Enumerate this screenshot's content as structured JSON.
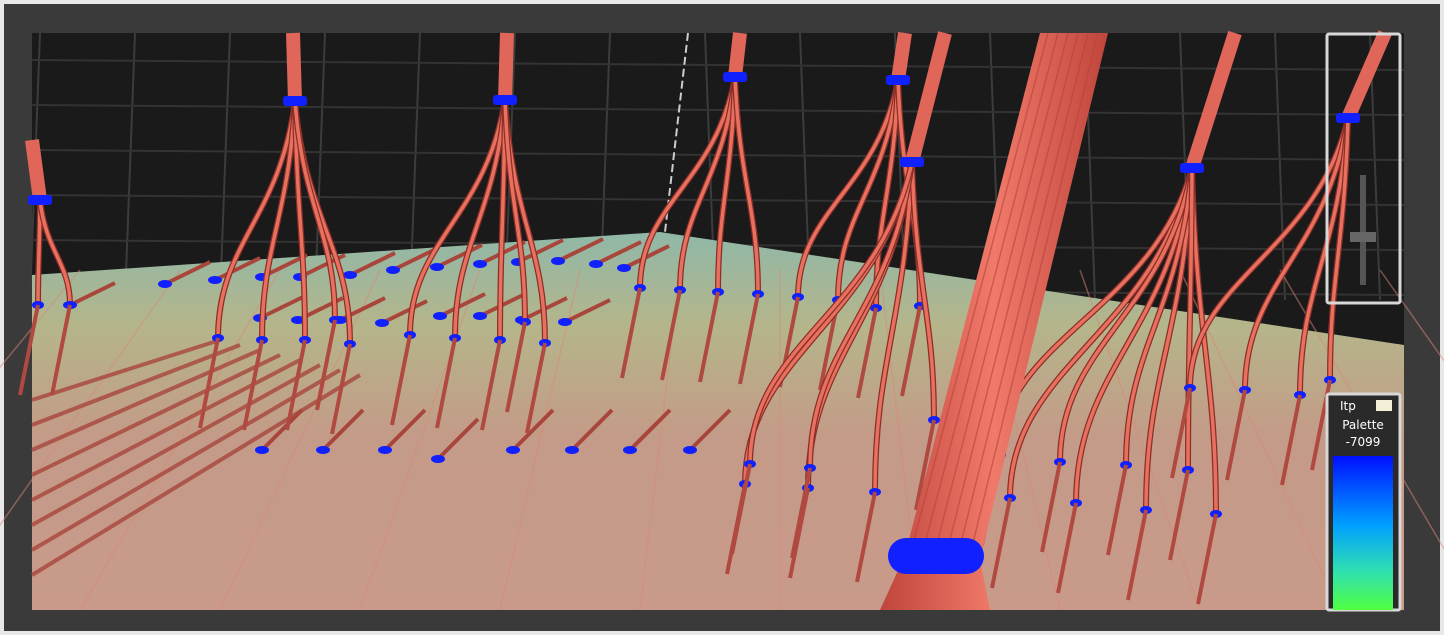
{
  "palette": {
    "field": "Itp",
    "title": "Palette",
    "max_label": "-7099"
  }
}
